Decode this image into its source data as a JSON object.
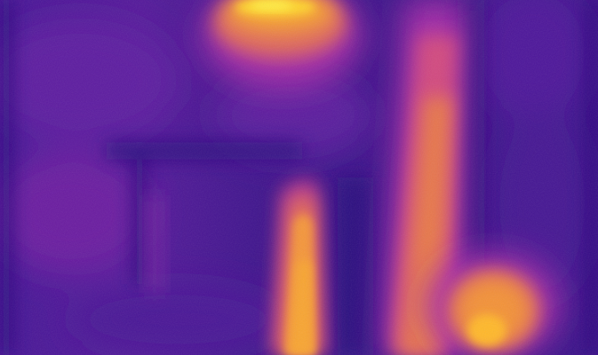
{
  "image": {
    "kind": "thermal-heatmap",
    "palette": {
      "deep": "#2f0f86",
      "base": "#3a128a",
      "mid_purple": "#6a1fa0",
      "magenta": "#a62aa8",
      "pink": "#d2497f",
      "orange": "#f08a3a",
      "hot": "#ffc226",
      "core": "#fff04a"
    }
  }
}
